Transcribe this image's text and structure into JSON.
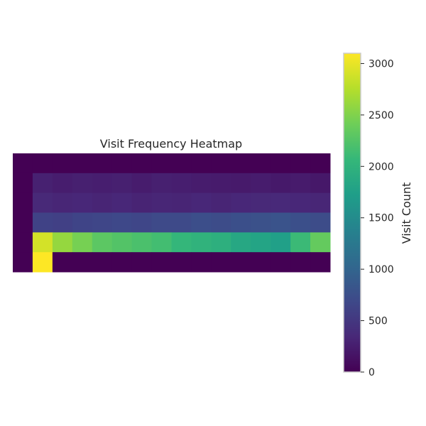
{
  "chart_data": {
    "type": "heatmap",
    "title": "Visit Frequency Heatmap",
    "xlabel": "",
    "ylabel": "",
    "grid": false,
    "colormap": "viridis",
    "colorbar": {
      "label": "Visit Count",
      "range": [
        0,
        3100
      ],
      "ticks": [
        0,
        500,
        1000,
        1500,
        2000,
        2500,
        3000
      ],
      "tick_labels": [
        "0",
        "500",
        "1000",
        "1500",
        "2000",
        "2500",
        "3000"
      ]
    },
    "rows": 6,
    "cols": 16,
    "values": [
      [
        0,
        0,
        0,
        0,
        0,
        0,
        0,
        0,
        0,
        0,
        0,
        0,
        0,
        0,
        0,
        0
      ],
      [
        0,
        280,
        250,
        270,
        260,
        270,
        240,
        270,
        260,
        240,
        230,
        220,
        240,
        210,
        230,
        200
      ],
      [
        0,
        350,
        330,
        340,
        320,
        340,
        310,
        330,
        320,
        340,
        320,
        340,
        350,
        360,
        340,
        330
      ],
      [
        0,
        620,
        600,
        640,
        660,
        680,
        660,
        700,
        700,
        740,
        720,
        760,
        780,
        800,
        760,
        720
      ],
      [
        0,
        2900,
        2600,
        2450,
        2300,
        2250,
        2200,
        2150,
        2050,
        2000,
        1950,
        1850,
        1800,
        1750,
        2100,
        2350
      ],
      [
        0,
        3100,
        0,
        0,
        0,
        0,
        0,
        0,
        0,
        0,
        0,
        0,
        0,
        0,
        0,
        0
      ]
    ]
  }
}
